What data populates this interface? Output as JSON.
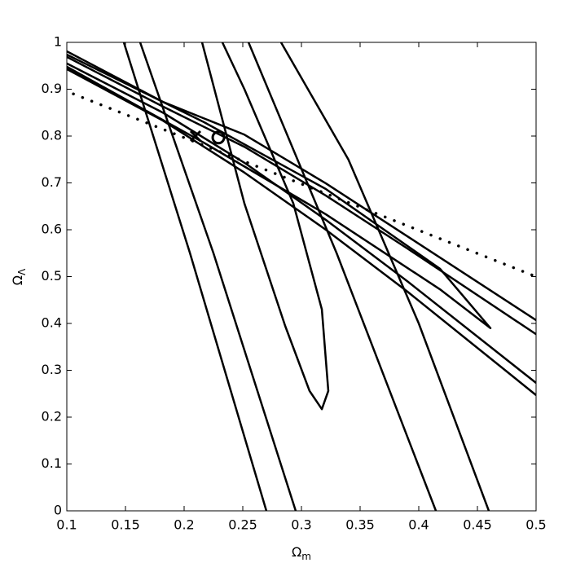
{
  "chart_data": {
    "type": "line",
    "xlabel": {
      "symbol": "Ω",
      "subscript": "m"
    },
    "ylabel": {
      "symbol": "Ω",
      "subscript": "Λ"
    },
    "xlim": [
      0.1,
      0.5
    ],
    "ylim": [
      0,
      1
    ],
    "xticks": [
      0.1,
      0.15,
      0.2,
      0.25,
      0.3,
      0.35,
      0.4,
      0.45,
      0.5
    ],
    "yticks": [
      0,
      0.1,
      0.2,
      0.3,
      0.4,
      0.5,
      0.6,
      0.7,
      0.8,
      0.9,
      1
    ],
    "series": [
      {
        "color": "#000000",
        "linestyle": "solid",
        "x": [
          0.1,
          0.1819,
          0.2514,
          0.3208,
          0.3903,
          0.5
        ],
        "y": [
          0.981,
          0.873,
          0.803,
          0.699,
          0.586,
          0.407
        ]
      },
      {
        "color": "#000000",
        "linestyle": "solid",
        "x": [
          0.1,
          0.1819,
          0.2514,
          0.3208,
          0.3903,
          0.5
        ],
        "y": [
          0.969,
          0.863,
          0.777,
          0.673,
          0.56,
          0.377
        ]
      },
      {
        "color": "#000000",
        "linestyle": "solid",
        "x": [
          0.1,
          0.1819,
          0.2514,
          0.3208,
          0.3903,
          0.5
        ],
        "y": [
          0.955,
          0.85,
          0.743,
          0.621,
          0.49,
          0.273
        ]
      },
      {
        "color": "#000000",
        "linestyle": "solid",
        "x": [
          0.1,
          0.1819,
          0.2514,
          0.3208,
          0.3903,
          0.5
        ],
        "y": [
          0.943,
          0.833,
          0.722,
          0.6,
          0.468,
          0.247
        ]
      },
      {
        "color": "#000000",
        "linestyle": "solid",
        "x": [
          0.1,
          0.2167,
          0.3208,
          0.418,
          0.4611,
          0.418,
          0.3208,
          0.2167,
          0.1
        ],
        "y": [
          0.974,
          0.83,
          0.687,
          0.517,
          0.39,
          0.473,
          0.633,
          0.786,
          0.948
        ]
      },
      {
        "color": "#000000",
        "linestyle": "solid",
        "x": [
          0.1486,
          0.205,
          0.2701
        ],
        "y": [
          1,
          0.55,
          0
        ]
      },
      {
        "color": "#000000",
        "linestyle": "solid",
        "x": [
          0.1625,
          0.225,
          0.2951
        ],
        "y": [
          1,
          0.55,
          0
        ]
      },
      {
        "color": "#000000",
        "linestyle": "solid",
        "x": [
          0.2549,
          0.33,
          0.4146
        ],
        "y": [
          1,
          0.55,
          0
        ]
      },
      {
        "color": "#000000",
        "linestyle": "solid",
        "x": [
          0.2826,
          0.34,
          0.4,
          0.4597
        ],
        "y": [
          1,
          0.75,
          0.4,
          0
        ]
      },
      {
        "color": "#000000",
        "linestyle": "solid",
        "x": [
          0.2153,
          0.2514,
          0.2861,
          0.3069,
          0.3174,
          0.3229,
          0.3174,
          0.2931,
          0.2514,
          0.2326
        ],
        "y": [
          1,
          0.656,
          0.395,
          0.256,
          0.217,
          0.256,
          0.43,
          0.656,
          0.9,
          1
        ]
      },
      {
        "color": "#000000",
        "linestyle": "dotted",
        "x": [
          0.1056,
          0.5
        ],
        "y": [
          0.89,
          0.5
        ]
      },
      {
        "color": "#000000",
        "linestyle": "none",
        "marker": "x",
        "x": [
          0.2097
        ],
        "y": [
          0.8
        ]
      },
      {
        "color": "#000000",
        "linestyle": "none",
        "marker": "o",
        "x": [
          0.2292
        ],
        "y": [
          0.797
        ]
      }
    ]
  }
}
